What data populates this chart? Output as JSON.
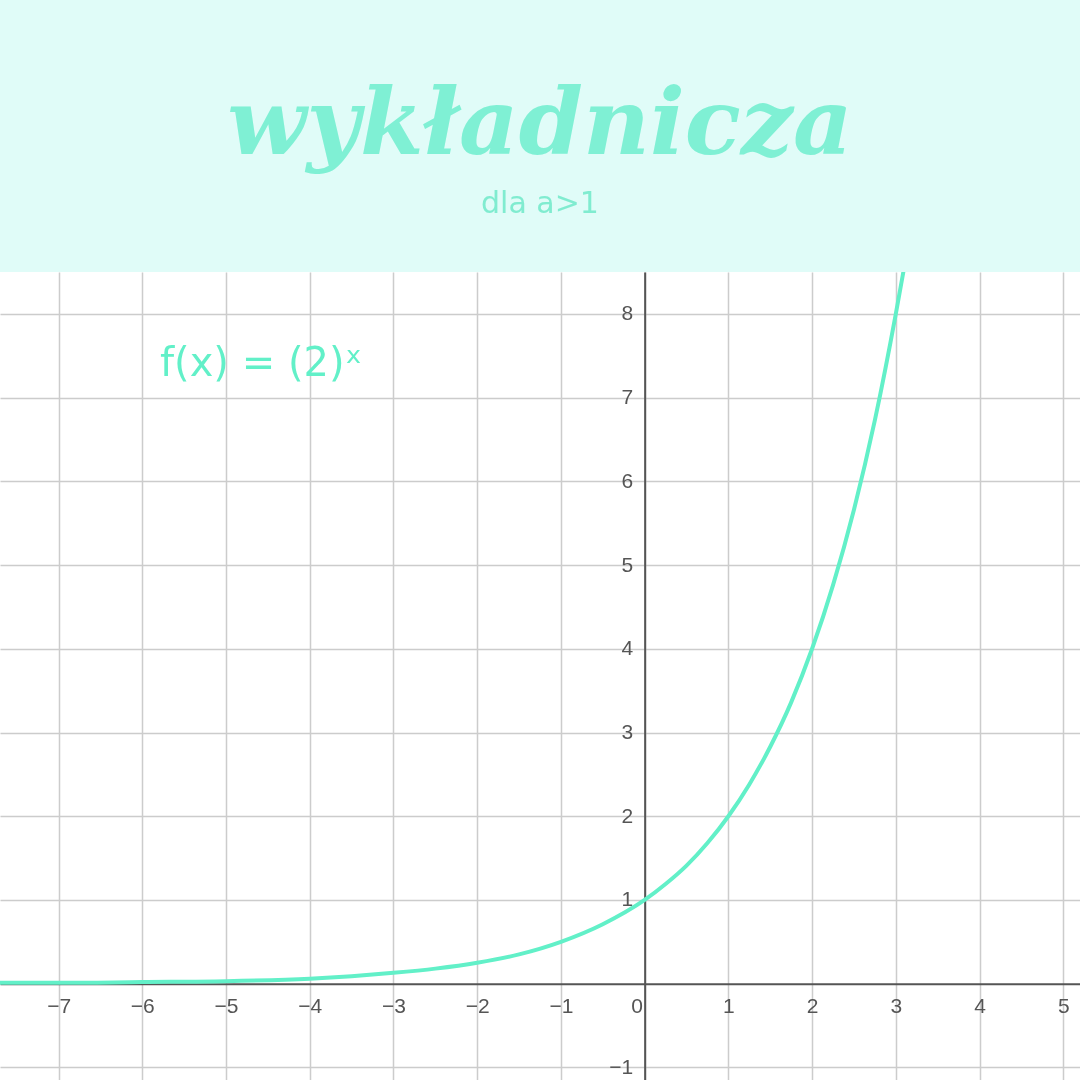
{
  "chart_data": {
    "type": "line",
    "title": "wykładnicza",
    "subtitle": "dla a>1",
    "annotations": [
      "f(x) = (2)ˣ"
    ],
    "x": [
      -7.7,
      -7,
      -6,
      -5,
      -4,
      -3.5,
      -3,
      -2.5,
      -2,
      -1.5,
      -1,
      -0.5,
      0,
      0.25,
      0.5,
      0.75,
      1,
      1.25,
      1.5,
      1.75,
      2,
      2.25,
      2.5,
      2.75,
      3,
      3.09
    ],
    "series": [
      {
        "color": "#62f0c8",
        "values": [
          0.01,
          0.01,
          0.02,
          0.03,
          0.06,
          0.09,
          0.13,
          0.18,
          0.25,
          0.35,
          0.5,
          0.71,
          1,
          1.19,
          1.41,
          1.68,
          2,
          2.38,
          2.83,
          3.36,
          4,
          4.76,
          5.66,
          6.73,
          8,
          8.5
        ]
      }
    ],
    "xlim": [
      -7.7,
      5.2
    ],
    "ylim": [
      -1.15,
      8.5
    ],
    "xticks": [
      -7,
      -6,
      -5,
      -4,
      -3,
      -2,
      -1,
      0,
      1,
      2,
      3,
      4,
      5
    ],
    "yticks": [
      -1,
      1,
      2,
      3,
      4,
      5,
      6,
      7,
      8
    ],
    "grid": true
  }
}
